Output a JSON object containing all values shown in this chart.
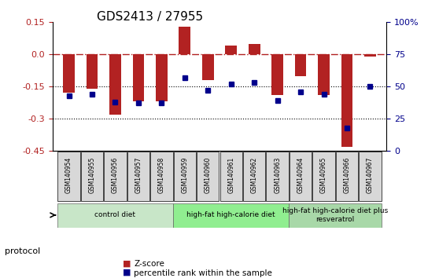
{
  "title": "GDS2413 / 27955",
  "samples": [
    "GSM140954",
    "GSM140955",
    "GSM140956",
    "GSM140957",
    "GSM140958",
    "GSM140959",
    "GSM140960",
    "GSM140961",
    "GSM140962",
    "GSM140963",
    "GSM140964",
    "GSM140965",
    "GSM140966",
    "GSM140967"
  ],
  "zscore": [
    -0.18,
    -0.16,
    -0.28,
    -0.22,
    -0.22,
    0.13,
    -0.12,
    0.04,
    0.05,
    -0.19,
    -0.1,
    -0.19,
    -0.43,
    -0.01
  ],
  "percentile": [
    43,
    44,
    38,
    37,
    37,
    57,
    47,
    52,
    53,
    39,
    46,
    44,
    18,
    50
  ],
  "ylim_left": [
    -0.45,
    0.15
  ],
  "ylim_right": [
    0,
    100
  ],
  "yticks_left": [
    -0.45,
    -0.3,
    -0.15,
    0.0,
    0.15
  ],
  "yticks_right": [
    0,
    25,
    50,
    75,
    100
  ],
  "ytick_labels_right": [
    "0",
    "25",
    "50",
    "75",
    "100%"
  ],
  "hline_y": 0.0,
  "dotted_lines": [
    -0.15,
    -0.3
  ],
  "bar_color": "#b22222",
  "dot_color": "#00008b",
  "groups": [
    {
      "label": "control diet",
      "start": 0,
      "end": 5,
      "color": "#c8e6c8"
    },
    {
      "label": "high-fat high-calorie diet",
      "start": 5,
      "end": 10,
      "color": "#90ee90"
    },
    {
      "label": "high-fat high-calorie diet plus\nresveratrol",
      "start": 10,
      "end": 14,
      "color": "#a8d8a8"
    }
  ],
  "legend_items": [
    {
      "label": "Z-score",
      "color": "#b22222",
      "marker": "s"
    },
    {
      "label": "percentile rank within the sample",
      "color": "#00008b",
      "marker": "s"
    }
  ],
  "protocol_label": "protocol",
  "xlabel_rotation": 90,
  "bar_width": 0.5
}
